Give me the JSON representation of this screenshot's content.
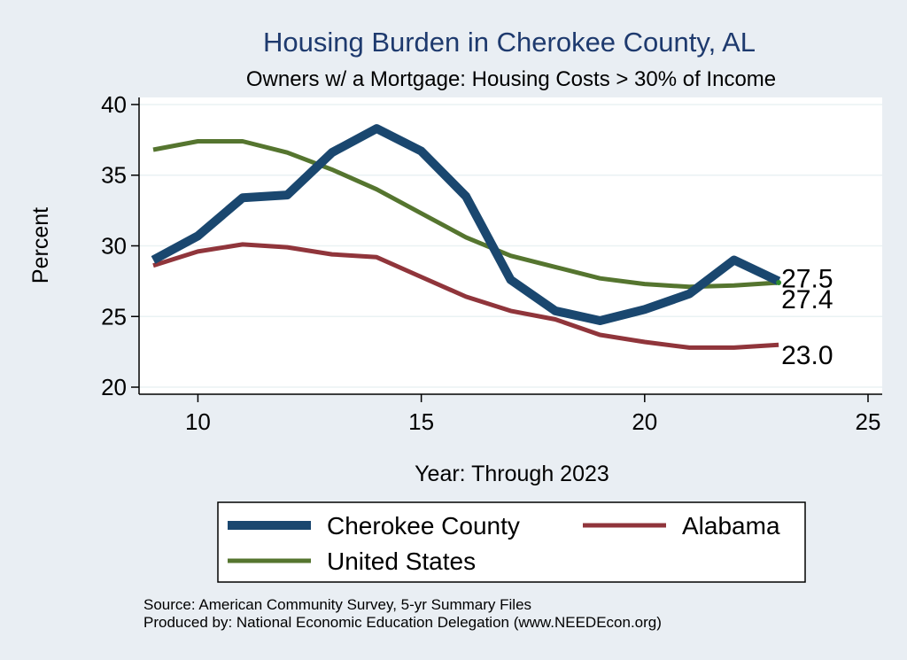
{
  "chart_data": {
    "type": "line",
    "title": "Housing Burden in Cherokee County, AL",
    "subtitle": "Owners w/ a Mortgage: Housing Costs > 30% of Income",
    "xlabel": "Year: Through 2023",
    "ylabel": "Percent",
    "xlim": [
      9,
      25
    ],
    "ylim": [
      19.5,
      40.5
    ],
    "xticks": [
      10,
      15,
      20,
      25
    ],
    "yticks": [
      20,
      25,
      30,
      35,
      40
    ],
    "grid": true,
    "x": [
      9,
      10,
      11,
      12,
      13,
      14,
      15,
      16,
      17,
      18,
      19,
      20,
      21,
      22,
      23
    ],
    "series": [
      {
        "name": "Cherokee County",
        "color": "#1a476f",
        "values": [
          29.0,
          30.7,
          33.4,
          33.6,
          36.6,
          38.3,
          36.7,
          33.5,
          27.6,
          25.4,
          24.7,
          25.5,
          26.6,
          29.0,
          27.5
        ],
        "end_label": "27.5"
      },
      {
        "name": "Alabama",
        "color": "#90353b",
        "values": [
          28.6,
          29.6,
          30.1,
          29.9,
          29.4,
          29.2,
          27.8,
          26.4,
          25.4,
          24.8,
          23.7,
          23.2,
          22.8,
          22.8,
          23.0
        ],
        "end_label": "23.0"
      },
      {
        "name": "United States",
        "color": "#55752f",
        "values": [
          36.8,
          37.4,
          37.4,
          36.6,
          35.4,
          34.0,
          32.3,
          30.6,
          29.3,
          28.5,
          27.7,
          27.3,
          27.1,
          27.2,
          27.4
        ],
        "end_label": "27.4"
      }
    ],
    "legend": [
      "Cherokee County",
      "Alabama",
      "United States"
    ],
    "notes": [
      "Source: American Community Survey, 5-yr Summary Files",
      "Produced by: National Economic Education Delegation (www.NEEDEcon.org)"
    ]
  }
}
